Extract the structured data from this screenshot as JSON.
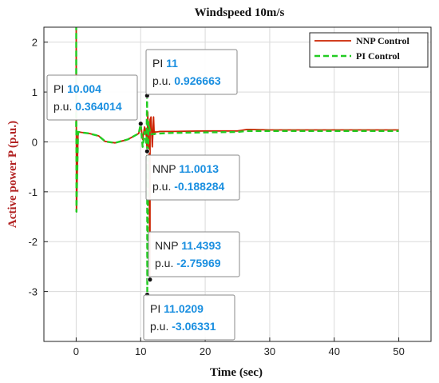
{
  "chart_data": {
    "type": "line",
    "title": "Windspeed 10m/s",
    "xlabel": "Time (sec)",
    "ylabel": "Active power P (p.u.)",
    "xlim": [
      -5,
      55
    ],
    "ylim": [
      -4,
      2.3
    ],
    "xticks": [
      0,
      10,
      20,
      30,
      40,
      50
    ],
    "yticks": [
      -3,
      -2,
      -1,
      0,
      1,
      2
    ],
    "xtick_labels": [
      "0",
      "10",
      "20",
      "30",
      "40",
      "50"
    ],
    "ytick_labels": [
      "-3",
      "-2",
      "-1",
      "0",
      "1",
      "2"
    ],
    "grid": true,
    "legend_position": "top-right",
    "series": [
      {
        "name": "NNP Control",
        "color": "#cc2200",
        "style": "solid",
        "x": [
          0,
          0.01,
          0.05,
          0.3,
          2,
          3.5,
          4.5,
          6,
          8,
          9.7,
          10.0,
          10.3,
          10.6,
          10.9,
          11.0013,
          11.1,
          11.3,
          11.4393,
          11.45,
          11.6,
          11.8,
          12.0,
          12.1,
          12.2,
          12.5,
          13,
          15,
          20,
          25,
          26.5,
          27,
          30,
          35,
          40,
          45,
          50
        ],
        "y": [
          0.3,
          2.3,
          -1.4,
          0.2,
          0.17,
          0.12,
          0.01,
          -0.02,
          0.05,
          0.17,
          0.364014,
          0.05,
          0.3,
          0.1,
          -0.188284,
          0.6,
          -0.3,
          -2.75969,
          0.45,
          0.5,
          -0.1,
          0.5,
          0.15,
          0.2,
          0.2,
          0.21,
          0.21,
          0.22,
          0.22,
          0.25,
          0.25,
          0.24,
          0.24,
          0.24,
          0.24,
          0.24
        ]
      },
      {
        "name": "PI Control",
        "color": "#22cc22",
        "style": "dashed",
        "x": [
          0,
          0.01,
          0.05,
          0.3,
          2,
          3.5,
          4.5,
          6,
          8,
          9.7,
          10.004,
          10.3,
          10.6,
          10.9,
          11,
          11.0209,
          11.2,
          11.5,
          12,
          13,
          15,
          20,
          25,
          26.5,
          27,
          30,
          35,
          40,
          45,
          50
        ],
        "y": [
          0.3,
          2.3,
          -1.4,
          0.2,
          0.17,
          0.12,
          0.01,
          -0.02,
          0.05,
          0.17,
          0.364014,
          -0.1,
          0.2,
          -0.05,
          0.926663,
          -3.06331,
          0.4,
          0.15,
          0.16,
          0.17,
          0.18,
          0.19,
          0.2,
          0.22,
          0.22,
          0.22,
          0.22,
          0.22,
          0.22,
          0.22
        ]
      }
    ],
    "datatips": [
      {
        "label": "PI",
        "x": "10.004",
        "y": "0.364014",
        "px": 10.004,
        "py": 0.364014
      },
      {
        "label": "PI",
        "x": "11",
        "y": "0.926663",
        "px": 11,
        "py": 0.926663
      },
      {
        "label": "NNP",
        "x": "11.0013",
        "y": "-0.188284",
        "px": 11.0013,
        "py": -0.188284
      },
      {
        "label": "NNP",
        "x": "11.4393",
        "y": "-2.75969",
        "px": 11.4393,
        "py": -2.75969
      },
      {
        "label": "PI",
        "x": "11.0209",
        "y": "-3.06331",
        "px": 11.0209,
        "py": -3.06331
      }
    ],
    "datatip_ylabel": "p.u."
  }
}
